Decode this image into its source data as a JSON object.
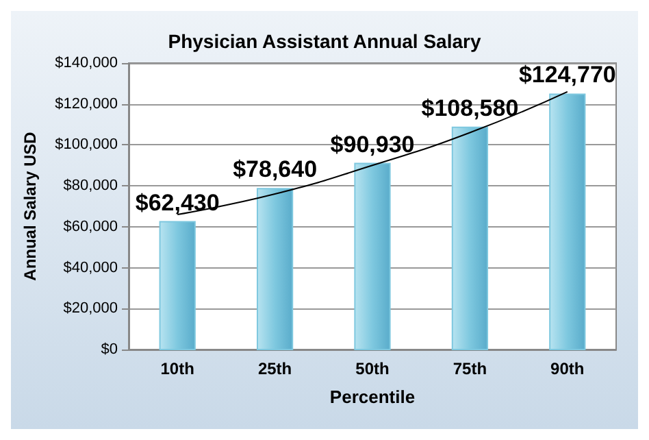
{
  "chart_data": {
    "type": "bar",
    "title": "Physician Assistant Annual Salary",
    "xlabel": "Percentile",
    "ylabel": "Annual Salary USD",
    "categories": [
      "10th",
      "25th",
      "50th",
      "75th",
      "90th"
    ],
    "series": [
      {
        "color": "#7ec8df",
        "values": [
          62430,
          78640,
          90930,
          108580,
          124770
        ],
        "value_labels": [
          "$62,430",
          "$78,640",
          "$90,930",
          "$108,580",
          "$124,770"
        ]
      },
      {
        "type": "line",
        "color": "#000000",
        "values": [
          66000,
          76000,
          90000,
          106000,
          126000
        ],
        "marker": "none"
      }
    ],
    "ylim": [
      0,
      140000
    ],
    "yticks": [
      {
        "value": 0,
        "label": "$0"
      },
      {
        "value": 20000,
        "label": "$20,000"
      },
      {
        "value": 40000,
        "label": "$40,000"
      },
      {
        "value": 60000,
        "label": "$60,000"
      },
      {
        "value": 80000,
        "label": "$80,000"
      },
      {
        "value": 100000,
        "label": "$100,000"
      },
      {
        "value": 120000,
        "label": "$120,000"
      },
      {
        "value": 140000,
        "label": "$140,000"
      }
    ],
    "grid": "y"
  }
}
